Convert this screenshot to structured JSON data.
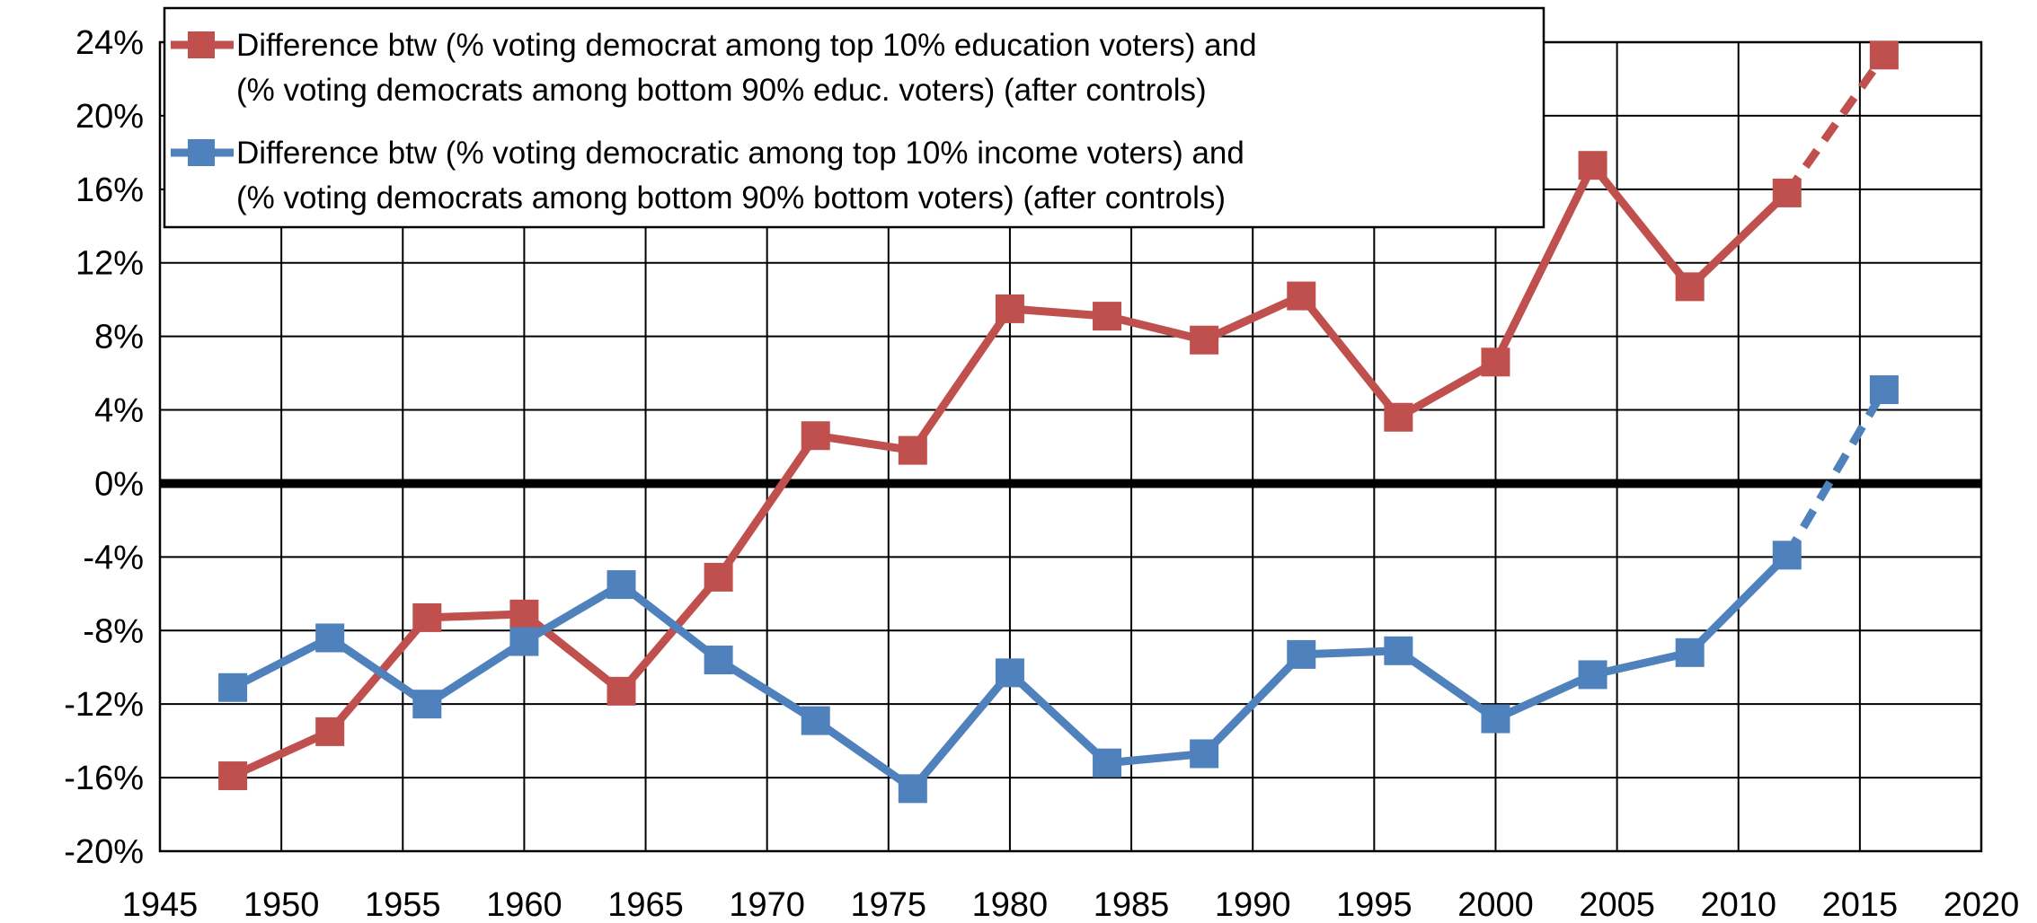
{
  "chart_data": {
    "type": "line",
    "title": "",
    "xlabel": "",
    "ylabel": "",
    "xlim": [
      1945,
      2020
    ],
    "ylim": [
      -20,
      24
    ],
    "x_ticks": [
      1945,
      1950,
      1955,
      1960,
      1965,
      1970,
      1975,
      1980,
      1985,
      1990,
      1995,
      2000,
      2005,
      2010,
      2015,
      2020
    ],
    "x_tick_labels": [
      "1945",
      "1950",
      "1955",
      "1960",
      "1965",
      "1970",
      "1975",
      "1980",
      "1985",
      "1990",
      "1995",
      "2000",
      "2005",
      "2010",
      "2015",
      "2020"
    ],
    "y_ticks": [
      -20,
      -16,
      -12,
      -8,
      -4,
      0,
      4,
      8,
      12,
      16,
      20,
      24
    ],
    "y_tick_labels": [
      "-20%",
      "-16%",
      "-12%",
      "-8%",
      "-4%",
      "0%",
      "4%",
      "8%",
      "12%",
      "16%",
      "20%",
      "24%"
    ],
    "grid": true,
    "legend_position": "top-left",
    "x": [
      1948,
      1952,
      1956,
      1960,
      1964,
      1968,
      1972,
      1976,
      1980,
      1984,
      1988,
      1992,
      1996,
      2000,
      2004,
      2008,
      2012,
      2016
    ],
    "series": [
      {
        "legend_lines": [
          "Difference btw (% voting democrat among top 10% education voters) and",
          "(% voting democrats among bottom 90% educ. voters) (after controls)"
        ],
        "color": "#C0504D",
        "values": [
          -15.9,
          -13.5,
          -7.3,
          -7.1,
          -11.3,
          -5.1,
          2.6,
          1.8,
          9.5,
          9.1,
          7.8,
          10.2,
          3.6,
          6.6,
          17.3,
          10.7,
          15.8,
          23.3
        ],
        "dashed_from_index": 16
      },
      {
        "legend_lines": [
          "Difference btw (% voting democratic among top 10% income voters) and",
          "(% voting democrats among bottom 90% bottom voters) (after controls)"
        ],
        "color": "#4F81BD",
        "values": [
          -11.1,
          -8.4,
          -12.0,
          -8.6,
          -5.5,
          -9.6,
          -12.9,
          -16.6,
          -10.3,
          -15.2,
          -14.7,
          -9.3,
          -9.1,
          -12.8,
          -10.4,
          -9.2,
          -3.9,
          5.1
        ],
        "dashed_from_index": 16
      }
    ]
  }
}
